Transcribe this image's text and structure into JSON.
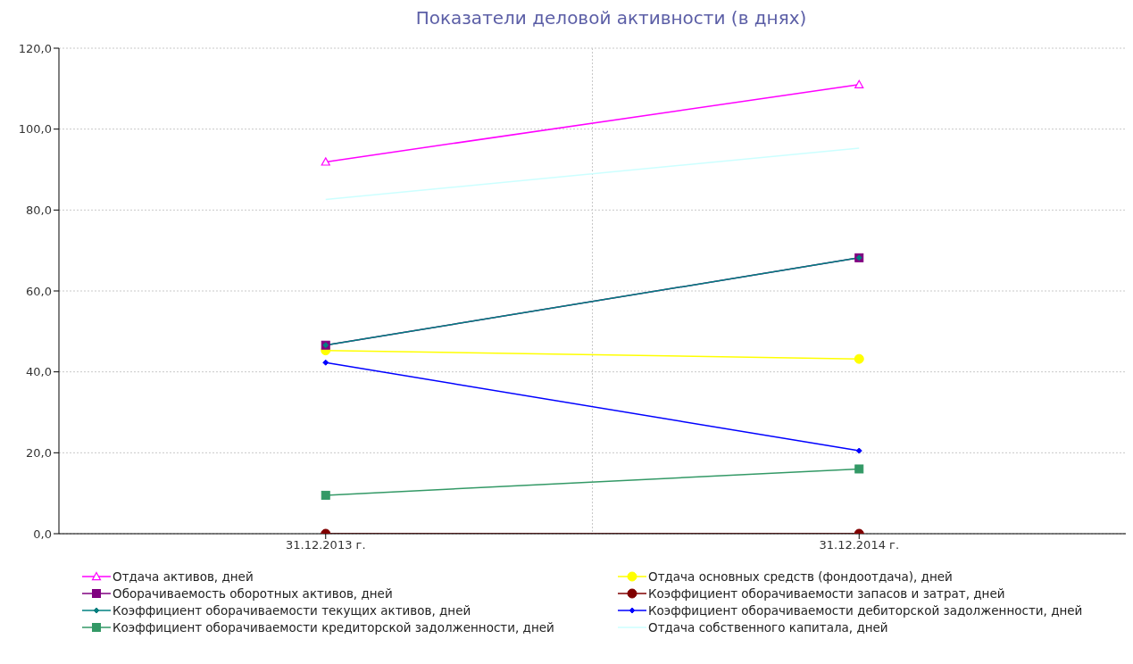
{
  "chart_data": {
    "type": "line",
    "title": "Показатели деловой активности (в днях)",
    "categories": [
      "31.12.2013 г.",
      "31.12.2014 г."
    ],
    "ylim": [
      0,
      120
    ],
    "yticks": [
      {
        "value": 0,
        "label": "0,0"
      },
      {
        "value": 20,
        "label": "20,0"
      },
      {
        "value": 40,
        "label": "40,0"
      },
      {
        "value": 60,
        "label": "60,0"
      },
      {
        "value": 80,
        "label": "80,0"
      },
      {
        "value": 100,
        "label": "100,0"
      },
      {
        "value": 120,
        "label": "120,0"
      }
    ],
    "grid": true,
    "legend": "bottom",
    "series": [
      {
        "name": "Отдача активов, дней",
        "color": "#ff00ff",
        "marker": "triangle",
        "values": [
          91.9,
          111.0
        ]
      },
      {
        "name": "Отдача основных средств (фондоотдача), дней",
        "color": "#ffff00",
        "marker": "circle",
        "values": [
          45.3,
          43.2
        ]
      },
      {
        "name": "Оборачиваемость оборотных активов, дней",
        "color": "#800080",
        "marker": "square",
        "values": [
          46.6,
          68.2
        ]
      },
      {
        "name": "Коэффициент оборачиваемости запасов и затрат, дней",
        "color": "#800000",
        "marker": "circle",
        "values": [
          0,
          0
        ]
      },
      {
        "name": "Коэффициент оборачиваемости текущих активов, дней",
        "color": "#008080",
        "marker": "diamond",
        "values": [
          46.6,
          68.2
        ]
      },
      {
        "name": "Коэффициент оборачиваемости дебиторской задолженности, дней",
        "color": "#0000ff",
        "marker": "diamond",
        "values": [
          42.3,
          20.5
        ]
      },
      {
        "name": "Коэффициент оборачиваемости кредиторской задолженности, дней",
        "color": "#339966",
        "marker": "square",
        "values": [
          9.5,
          16.0
        ]
      },
      {
        "name": "Отдача собственного капитала, дней",
        "color": "#ccffff",
        "marker": "none",
        "values": [
          82.6,
          95.3
        ]
      }
    ]
  }
}
